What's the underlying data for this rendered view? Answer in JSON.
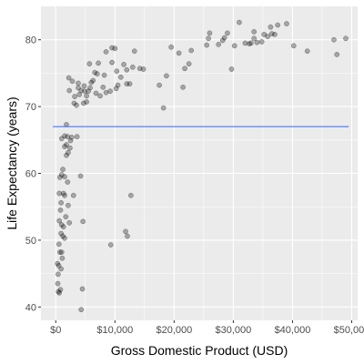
{
  "chart_data": {
    "type": "scatter",
    "xlabel": "Gross Domestic Product (USD)",
    "ylabel": "Life Expectancy (years)",
    "xlim": [
      -2500,
      51000
    ],
    "ylim": [
      38,
      85
    ],
    "x_ticks": [
      0,
      10000,
      20000,
      30000,
      40000,
      50000
    ],
    "x_tick_labels": [
      "$0",
      "$10,000",
      "$20,000",
      "$30,000",
      "$40,000",
      "$50,000"
    ],
    "y_ticks": [
      40,
      50,
      60,
      70,
      80
    ],
    "y_tick_labels": [
      "40",
      "50",
      "60",
      "70",
      "80"
    ],
    "grid": true,
    "panel_color": "#ebebeb",
    "grid_color": "#ffffff",
    "point_color": "#000000",
    "point_opacity": 0.3,
    "line_color": "#3366ff",
    "series": [
      {
        "values": [
          [
            300,
            46.5
          ],
          [
            350,
            43.5
          ],
          [
            400,
            44.9
          ],
          [
            500,
            46.2
          ],
          [
            450,
            42.3
          ],
          [
            600,
            42.1
          ],
          [
            700,
            48.2
          ],
          [
            800,
            42.6
          ],
          [
            550,
            49.4
          ],
          [
            900,
            45.7
          ],
          [
            1000,
            48.2
          ],
          [
            1100,
            47.3
          ],
          [
            1200,
            50.6
          ],
          [
            900,
            51.0
          ],
          [
            600,
            52.9
          ],
          [
            1000,
            52.3
          ],
          [
            1300,
            52.0
          ],
          [
            800,
            54.5
          ],
          [
            1500,
            50.3
          ],
          [
            1700,
            53.5
          ],
          [
            600,
            57.0
          ],
          [
            900,
            55.6
          ],
          [
            1300,
            57.0
          ],
          [
            1500,
            56.7
          ],
          [
            700,
            59.4
          ],
          [
            1000,
            59.8
          ],
          [
            1200,
            60.6
          ],
          [
            1500,
            59.5
          ],
          [
            2000,
            58.7
          ],
          [
            1800,
            62.7
          ],
          [
            1500,
            64.0
          ],
          [
            1800,
            64.3
          ],
          [
            2100,
            63.1
          ],
          [
            2400,
            63.8
          ],
          [
            2000,
            65.5
          ],
          [
            1000,
            65.2
          ],
          [
            1500,
            65.6
          ],
          [
            2700,
            65.4
          ],
          [
            2500,
            64.9
          ],
          [
            3600,
            65.5
          ],
          [
            4200,
            59.6
          ],
          [
            3000,
            56.7
          ],
          [
            2100,
            55.2
          ],
          [
            2300,
            52.6
          ],
          [
            4600,
            52.8
          ],
          [
            4500,
            42.7
          ],
          [
            4300,
            39.6
          ],
          [
            1800,
            67.3
          ],
          [
            2300,
            72.4
          ],
          [
            2800,
            73.8
          ],
          [
            2200,
            74.3
          ],
          [
            3200,
            71.5
          ],
          [
            3100,
            70.5
          ],
          [
            3500,
            70.2
          ],
          [
            3800,
            72.8
          ],
          [
            4000,
            71.8
          ],
          [
            4300,
            72.4
          ],
          [
            4700,
            70.5
          ],
          [
            4900,
            72.3
          ],
          [
            5200,
            71.6
          ],
          [
            5500,
            72.3
          ],
          [
            5800,
            72.8
          ],
          [
            6300,
            73.9
          ],
          [
            6600,
            75.1
          ],
          [
            7000,
            74.9
          ],
          [
            5700,
            76.4
          ],
          [
            4800,
            73.1
          ],
          [
            6000,
            73.6
          ],
          [
            5200,
            70.7
          ],
          [
            3800,
            73.5
          ],
          [
            6800,
            72.0
          ],
          [
            7500,
            71.6
          ],
          [
            8000,
            72.9
          ],
          [
            8500,
            72.1
          ],
          [
            9200,
            72.3
          ],
          [
            8200,
            74.7
          ],
          [
            9500,
            76.6
          ],
          [
            7200,
            76.5
          ],
          [
            8500,
            78.2
          ],
          [
            9500,
            78.8
          ],
          [
            10300,
            75.3
          ],
          [
            11000,
            74.4
          ],
          [
            11500,
            76.3
          ],
          [
            12000,
            75.5
          ],
          [
            12500,
            73.4
          ],
          [
            13000,
            75.9
          ],
          [
            14200,
            75.7
          ],
          [
            14800,
            75.6
          ],
          [
            10500,
            73.2
          ],
          [
            10200,
            72.7
          ],
          [
            12000,
            73.4
          ],
          [
            13300,
            78.3
          ],
          [
            10000,
            78.7
          ],
          [
            17500,
            73.2
          ],
          [
            18200,
            69.8
          ],
          [
            19500,
            78.9
          ],
          [
            18700,
            74.6
          ],
          [
            21500,
            72.9
          ],
          [
            21800,
            75.7
          ],
          [
            22500,
            76.4
          ],
          [
            20800,
            78.0
          ],
          [
            22900,
            78.4
          ],
          [
            25800,
            80.2
          ],
          [
            25500,
            79.2
          ],
          [
            26000,
            81.0
          ],
          [
            27500,
            79.3
          ],
          [
            28500,
            80.3
          ],
          [
            29000,
            81.0
          ],
          [
            28200,
            79.9
          ],
          [
            29700,
            75.6
          ],
          [
            30200,
            79.1
          ],
          [
            31000,
            82.6
          ],
          [
            32000,
            79.5
          ],
          [
            32700,
            79.4
          ],
          [
            33000,
            79.5
          ],
          [
            33500,
            80.2
          ],
          [
            34000,
            79.6
          ],
          [
            34800,
            79.7
          ],
          [
            35200,
            80.8
          ],
          [
            35800,
            80.5
          ],
          [
            36500,
            80.9
          ],
          [
            37000,
            80.8
          ],
          [
            33500,
            81.2
          ],
          [
            36300,
            81.9
          ],
          [
            37500,
            82.2
          ],
          [
            39000,
            82.4
          ],
          [
            40200,
            79.1
          ],
          [
            42500,
            78.3
          ],
          [
            47000,
            80.0
          ],
          [
            47500,
            77.8
          ],
          [
            49000,
            80.2
          ],
          [
            12700,
            56.7
          ],
          [
            11800,
            51.3
          ],
          [
            12100,
            50.6
          ],
          [
            9300,
            49.3
          ]
        ]
      }
    ],
    "smooth_line": {
      "x": [
        -500,
        49500
      ],
      "y": [
        67.0,
        67.0
      ]
    }
  }
}
